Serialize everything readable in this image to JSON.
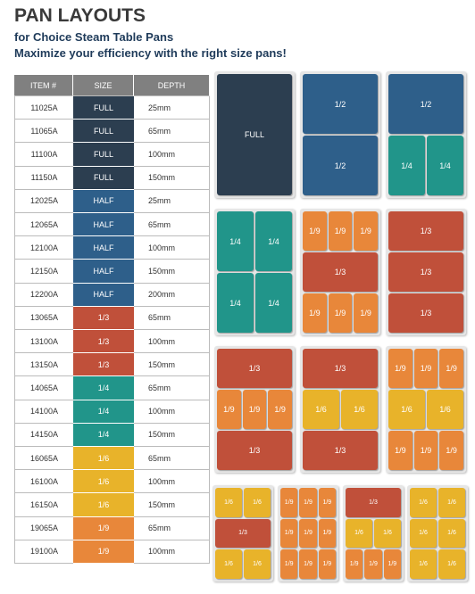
{
  "header": {
    "title": "PAN LAYOUTS",
    "subtitle": "for Choice Steam Table Pans",
    "tagline": "Maximize your efficiency with the right size pans!"
  },
  "table": {
    "header": [
      "ITEM #",
      "SIZE",
      "DEPTH"
    ],
    "rows": [
      [
        "11025A",
        "FULL",
        "25mm"
      ],
      [
        "11065A",
        "FULL",
        "65mm"
      ],
      [
        "11100A",
        "FULL",
        "100mm"
      ],
      [
        "11150A",
        "FULL",
        "150mm"
      ],
      [
        "12025A",
        "HALF",
        "25mm"
      ],
      [
        "12065A",
        "HALF",
        "65mm"
      ],
      [
        "12100A",
        "HALF",
        "100mm"
      ],
      [
        "12150A",
        "HALF",
        "150mm"
      ],
      [
        "12200A",
        "HALF",
        "200mm"
      ],
      [
        "13065A",
        "1/3",
        "65mm"
      ],
      [
        "13100A",
        "1/3",
        "100mm"
      ],
      [
        "13150A",
        "1/3",
        "150mm"
      ],
      [
        "14065A",
        "1/4",
        "65mm"
      ],
      [
        "14100A",
        "1/4",
        "100mm"
      ],
      [
        "14150A",
        "1/4",
        "150mm"
      ],
      [
        "16065A",
        "1/6",
        "65mm"
      ],
      [
        "16100A",
        "1/6",
        "100mm"
      ],
      [
        "16150A",
        "1/6",
        "150mm"
      ],
      [
        "19065A",
        "1/9",
        "65mm"
      ],
      [
        "19100A",
        "1/9",
        "100mm"
      ]
    ],
    "size_colors": [
      "#2c3e50",
      "#2c3e50",
      "#2c3e50",
      "#2c3e50",
      "#2e5f8a",
      "#2e5f8a",
      "#2e5f8a",
      "#2e5f8a",
      "#2e5f8a",
      "#c0503a",
      "#c0503a",
      "#c0503a",
      "#21958a",
      "#21958a",
      "#21958a",
      "#e8b32a",
      "#e8b32a",
      "#e8b32a",
      "#e8873a",
      "#e8873a"
    ]
  },
  "layouts": [
    {
      "rows": [
        [
          {
            "label": "FULL",
            "color": "#2c3e50"
          }
        ]
      ]
    },
    {
      "rows": [
        [
          {
            "label": "1/2",
            "color": "#2e5f8a"
          }
        ],
        [
          {
            "label": "1/2",
            "color": "#2e5f8a"
          }
        ]
      ]
    },
    {
      "rows": [
        [
          {
            "label": "1/2",
            "color": "#2e5f8a"
          }
        ],
        [
          {
            "label": "1/4",
            "color": "#21958a"
          },
          {
            "label": "1/4",
            "color": "#21958a"
          }
        ]
      ]
    },
    {
      "rows": [
        [
          {
            "label": "1/4",
            "color": "#21958a"
          },
          {
            "label": "1/4",
            "color": "#21958a"
          }
        ],
        [
          {
            "label": "1/4",
            "color": "#21958a"
          },
          {
            "label": "1/4",
            "color": "#21958a"
          }
        ]
      ]
    },
    {
      "rows": [
        [
          {
            "label": "1/9",
            "color": "#e8873a"
          },
          {
            "label": "1/9",
            "color": "#e8873a"
          },
          {
            "label": "1/9",
            "color": "#e8873a"
          }
        ],
        [
          {
            "label": "1/3",
            "color": "#c0503a"
          }
        ],
        [
          {
            "label": "1/9",
            "color": "#e8873a"
          },
          {
            "label": "1/9",
            "color": "#e8873a"
          },
          {
            "label": "1/9",
            "color": "#e8873a"
          }
        ]
      ]
    },
    {
      "rows": [
        [
          {
            "label": "1/3",
            "color": "#c0503a"
          }
        ],
        [
          {
            "label": "1/3",
            "color": "#c0503a"
          }
        ],
        [
          {
            "label": "1/3",
            "color": "#c0503a"
          }
        ]
      ]
    },
    {
      "rows": [
        [
          {
            "label": "1/3",
            "color": "#c0503a"
          }
        ],
        [
          {
            "label": "1/9",
            "color": "#e8873a"
          },
          {
            "label": "1/9",
            "color": "#e8873a"
          },
          {
            "label": "1/9",
            "color": "#e8873a"
          }
        ],
        [
          {
            "label": "1/3",
            "color": "#c0503a"
          }
        ]
      ]
    },
    {
      "rows": [
        [
          {
            "label": "1/3",
            "color": "#c0503a"
          }
        ],
        [
          {
            "label": "1/6",
            "color": "#e8b32a"
          },
          {
            "label": "1/6",
            "color": "#e8b32a"
          }
        ],
        [
          {
            "label": "1/3",
            "color": "#c0503a"
          }
        ]
      ]
    },
    {
      "rows": [
        [
          {
            "label": "1/9",
            "color": "#e8873a"
          },
          {
            "label": "1/9",
            "color": "#e8873a"
          },
          {
            "label": "1/9",
            "color": "#e8873a"
          }
        ],
        [
          {
            "label": "1/6",
            "color": "#e8b32a"
          },
          {
            "label": "1/6",
            "color": "#e8b32a"
          }
        ],
        [
          {
            "label": "1/9",
            "color": "#e8873a"
          },
          {
            "label": "1/9",
            "color": "#e8873a"
          },
          {
            "label": "1/9",
            "color": "#e8873a"
          }
        ]
      ]
    },
    {
      "rows": [
        [
          {
            "label": "1/6",
            "color": "#e8b32a"
          },
          {
            "label": "1/6",
            "color": "#e8b32a"
          }
        ],
        [
          {
            "label": "1/3",
            "color": "#c0503a"
          }
        ],
        [
          {
            "label": "1/6",
            "color": "#e8b32a"
          },
          {
            "label": "1/6",
            "color": "#e8b32a"
          }
        ]
      ]
    },
    {
      "rows": [
        [
          {
            "label": "1/9",
            "color": "#e8873a"
          },
          {
            "label": "1/9",
            "color": "#e8873a"
          },
          {
            "label": "1/9",
            "color": "#e8873a"
          }
        ],
        [
          {
            "label": "1/9",
            "color": "#e8873a"
          },
          {
            "label": "1/9",
            "color": "#e8873a"
          },
          {
            "label": "1/9",
            "color": "#e8873a"
          }
        ],
        [
          {
            "label": "1/9",
            "color": "#e8873a"
          },
          {
            "label": "1/9",
            "color": "#e8873a"
          },
          {
            "label": "1/9",
            "color": "#e8873a"
          }
        ]
      ]
    },
    {
      "rows": [
        [
          {
            "label": "1/3",
            "color": "#c0503a"
          }
        ],
        [
          {
            "label": "1/6",
            "color": "#e8b32a"
          },
          {
            "label": "1/6",
            "color": "#e8b32a"
          }
        ],
        [
          {
            "label": "1/9",
            "color": "#e8873a"
          },
          {
            "label": "1/9",
            "color": "#e8873a"
          },
          {
            "label": "1/9",
            "color": "#e8873a"
          }
        ]
      ]
    },
    {
      "rows": [
        [
          {
            "label": "1/6",
            "color": "#e8b32a"
          },
          {
            "label": "1/6",
            "color": "#e8b32a"
          }
        ],
        [
          {
            "label": "1/6",
            "color": "#e8b32a"
          },
          {
            "label": "1/6",
            "color": "#e8b32a"
          }
        ],
        [
          {
            "label": "1/6",
            "color": "#e8b32a"
          },
          {
            "label": "1/6",
            "color": "#e8b32a"
          }
        ]
      ]
    }
  ]
}
